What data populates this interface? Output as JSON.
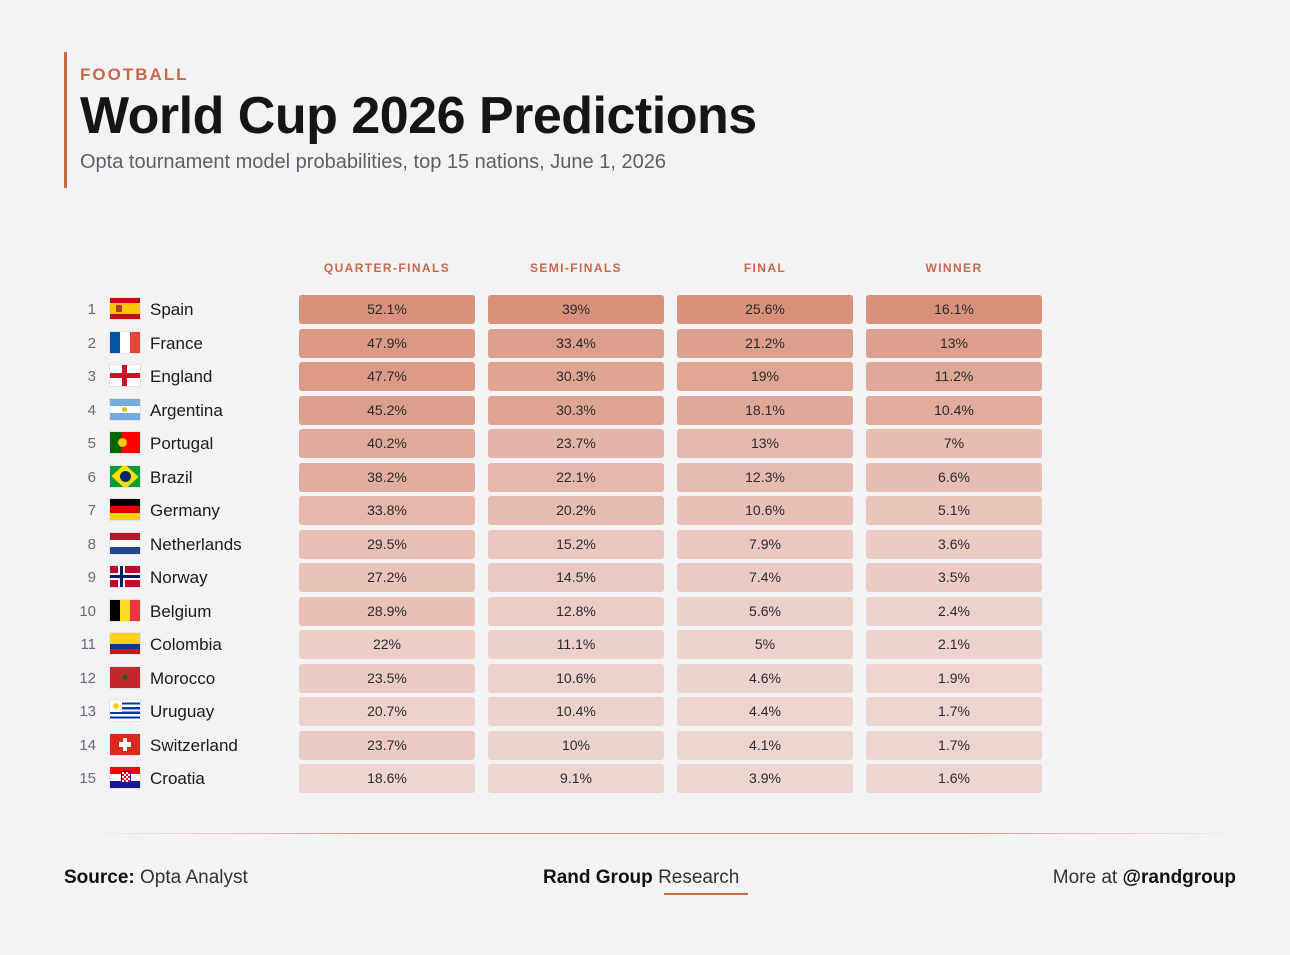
{
  "header": {
    "kicker": "FOOTBALL",
    "title": "World Cup 2026 Predictions",
    "subtitle": "Opta tournament model probabilities, top 15 nations, June 1, 2026"
  },
  "colors": {
    "accent": "#c8694a",
    "cell_high": "#d9917c",
    "cell_low": "#f1dedb"
  },
  "chart_data": {
    "type": "table",
    "columns": [
      "QUARTER-FINALS",
      "SEMI-FINALS",
      "FINAL",
      "WINNER"
    ],
    "rows": [
      {
        "rank": "1",
        "country": "Spain",
        "flag": "spain-flag-icon",
        "values": [
          52.1,
          39,
          25.6,
          16.1
        ],
        "labels": [
          "52.1%",
          "39%",
          "25.6%",
          "16.1%"
        ]
      },
      {
        "rank": "2",
        "country": "France",
        "flag": "france-flag-icon",
        "values": [
          47.9,
          33.4,
          21.2,
          13
        ],
        "labels": [
          "47.9%",
          "33.4%",
          "21.2%",
          "13%"
        ]
      },
      {
        "rank": "3",
        "country": "England",
        "flag": "england-flag-icon",
        "values": [
          47.7,
          30.3,
          19,
          11.2
        ],
        "labels": [
          "47.7%",
          "30.3%",
          "19%",
          "11.2%"
        ]
      },
      {
        "rank": "4",
        "country": "Argentina",
        "flag": "argentina-flag-icon",
        "values": [
          45.2,
          30.3,
          18.1,
          10.4
        ],
        "labels": [
          "45.2%",
          "30.3%",
          "18.1%",
          "10.4%"
        ]
      },
      {
        "rank": "5",
        "country": "Portugal",
        "flag": "portugal-flag-icon",
        "values": [
          40.2,
          23.7,
          13,
          7
        ],
        "labels": [
          "40.2%",
          "23.7%",
          "13%",
          "7%"
        ]
      },
      {
        "rank": "6",
        "country": "Brazil",
        "flag": "brazil-flag-icon",
        "values": [
          38.2,
          22.1,
          12.3,
          6.6
        ],
        "labels": [
          "38.2%",
          "22.1%",
          "12.3%",
          "6.6%"
        ]
      },
      {
        "rank": "7",
        "country": "Germany",
        "flag": "germany-flag-icon",
        "values": [
          33.8,
          20.2,
          10.6,
          5.1
        ],
        "labels": [
          "33.8%",
          "20.2%",
          "10.6%",
          "5.1%"
        ]
      },
      {
        "rank": "8",
        "country": "Netherlands",
        "flag": "netherlands-flag-icon",
        "values": [
          29.5,
          15.2,
          7.9,
          3.6
        ],
        "labels": [
          "29.5%",
          "15.2%",
          "7.9%",
          "3.6%"
        ]
      },
      {
        "rank": "9",
        "country": "Norway",
        "flag": "norway-flag-icon",
        "values": [
          27.2,
          14.5,
          7.4,
          3.5
        ],
        "labels": [
          "27.2%",
          "14.5%",
          "7.4%",
          "3.5%"
        ]
      },
      {
        "rank": "10",
        "country": "Belgium",
        "flag": "belgium-flag-icon",
        "values": [
          28.9,
          12.8,
          5.6,
          2.4
        ],
        "labels": [
          "28.9%",
          "12.8%",
          "5.6%",
          "2.4%"
        ]
      },
      {
        "rank": "11",
        "country": "Colombia",
        "flag": "colombia-flag-icon",
        "values": [
          22,
          11.1,
          5,
          2.1
        ],
        "labels": [
          "22%",
          "11.1%",
          "5%",
          "2.1%"
        ]
      },
      {
        "rank": "12",
        "country": "Morocco",
        "flag": "morocco-flag-icon",
        "values": [
          23.5,
          10.6,
          4.6,
          1.9
        ],
        "labels": [
          "23.5%",
          "10.6%",
          "4.6%",
          "1.9%"
        ]
      },
      {
        "rank": "13",
        "country": "Uruguay",
        "flag": "uruguay-flag-icon",
        "values": [
          20.7,
          10.4,
          4.4,
          1.7
        ],
        "labels": [
          "20.7%",
          "10.4%",
          "4.4%",
          "1.7%"
        ]
      },
      {
        "rank": "14",
        "country": "Switzerland",
        "flag": "switzerland-flag-icon",
        "values": [
          23.7,
          10,
          4.1,
          1.7
        ],
        "labels": [
          "23.7%",
          "10%",
          "4.1%",
          "1.7%"
        ]
      },
      {
        "rank": "15",
        "country": "Croatia",
        "flag": "croatia-flag-icon",
        "values": [
          18.6,
          9.1,
          3.9,
          1.6
        ],
        "labels": [
          "18.6%",
          "9.1%",
          "3.9%",
          "1.6%"
        ]
      }
    ]
  },
  "footer": {
    "source_label": "Source:",
    "source_value": "Opta Analyst",
    "brand_bold": "Rand Group",
    "brand_light": "Research",
    "more_label": "More at",
    "handle": "@randgroup"
  }
}
